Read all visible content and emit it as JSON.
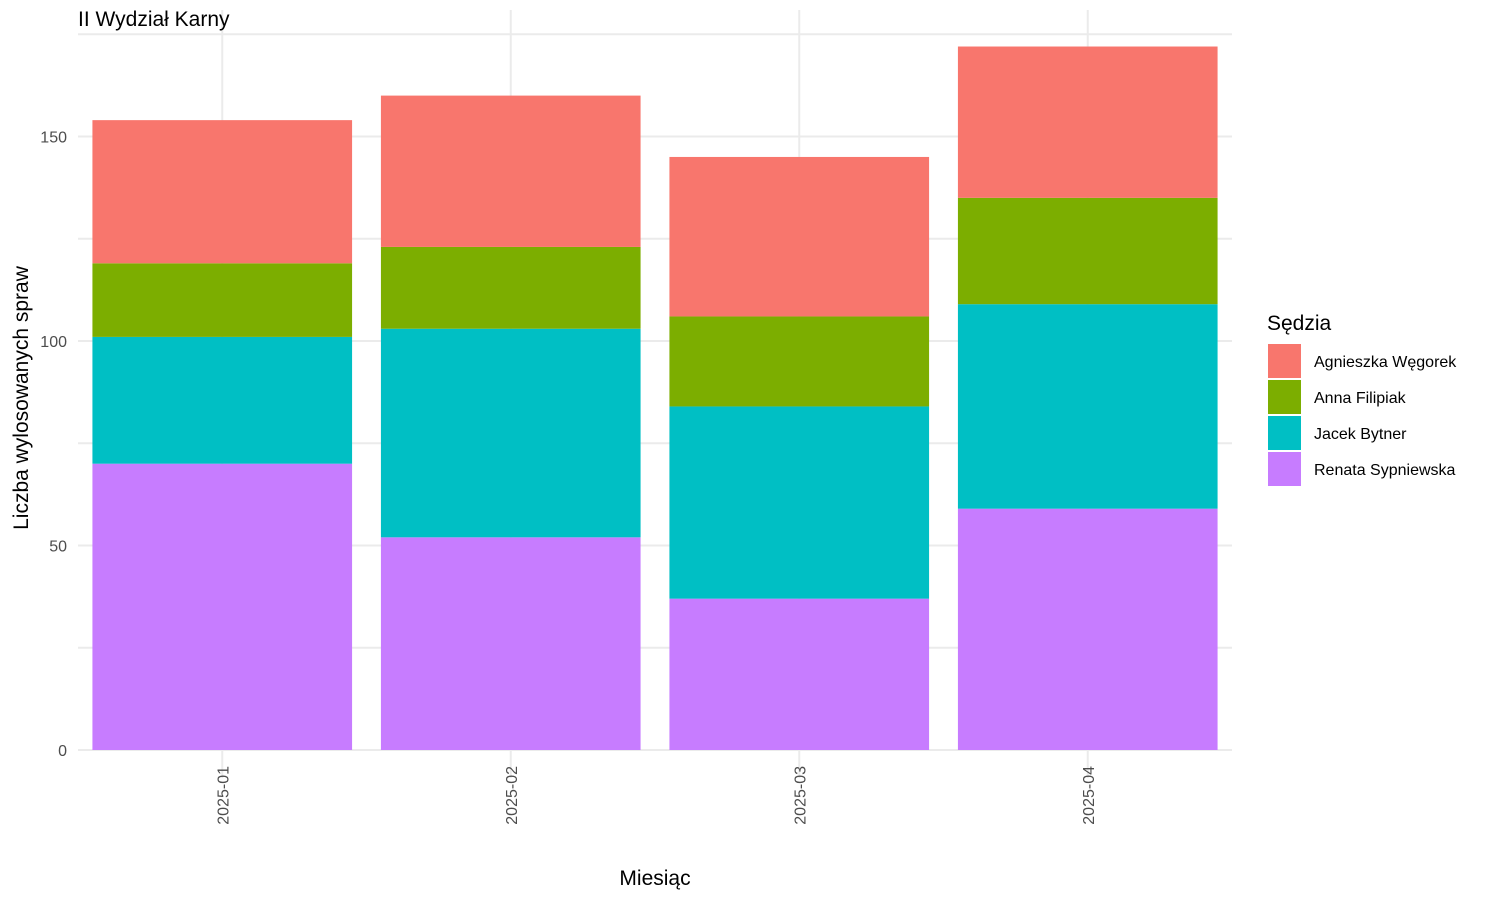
{
  "chart_data": {
    "type": "bar",
    "stacked": true,
    "title": "II Wydział Karny",
    "xlabel": "Miesiąc",
    "ylabel": "Liczba wylosowanych spraw",
    "categories": [
      "2025-01",
      "2025-02",
      "2025-03",
      "2025-04"
    ],
    "ylim": [
      0,
      180
    ],
    "yticks": [
      0,
      50,
      100,
      150
    ],
    "grid": true,
    "legend": {
      "title": "Sędzia",
      "position": "right"
    },
    "series": [
      {
        "name": "Renata Sypniewska",
        "color": "#C77CFF",
        "values": [
          70,
          52,
          37,
          59
        ]
      },
      {
        "name": "Jacek Bytner",
        "color": "#00BFC4",
        "values": [
          31,
          51,
          47,
          50
        ]
      },
      {
        "name": "Anna Filipiak",
        "color": "#7CAE00",
        "values": [
          18,
          20,
          22,
          26
        ]
      },
      {
        "name": "Agnieszka Węgorek",
        "color": "#F8766D",
        "values": [
          35,
          37,
          39,
          37
        ]
      }
    ],
    "legend_order": [
      "Agnieszka Węgorek",
      "Anna Filipiak",
      "Jacek Bytner",
      "Renata Sypniewska"
    ]
  }
}
